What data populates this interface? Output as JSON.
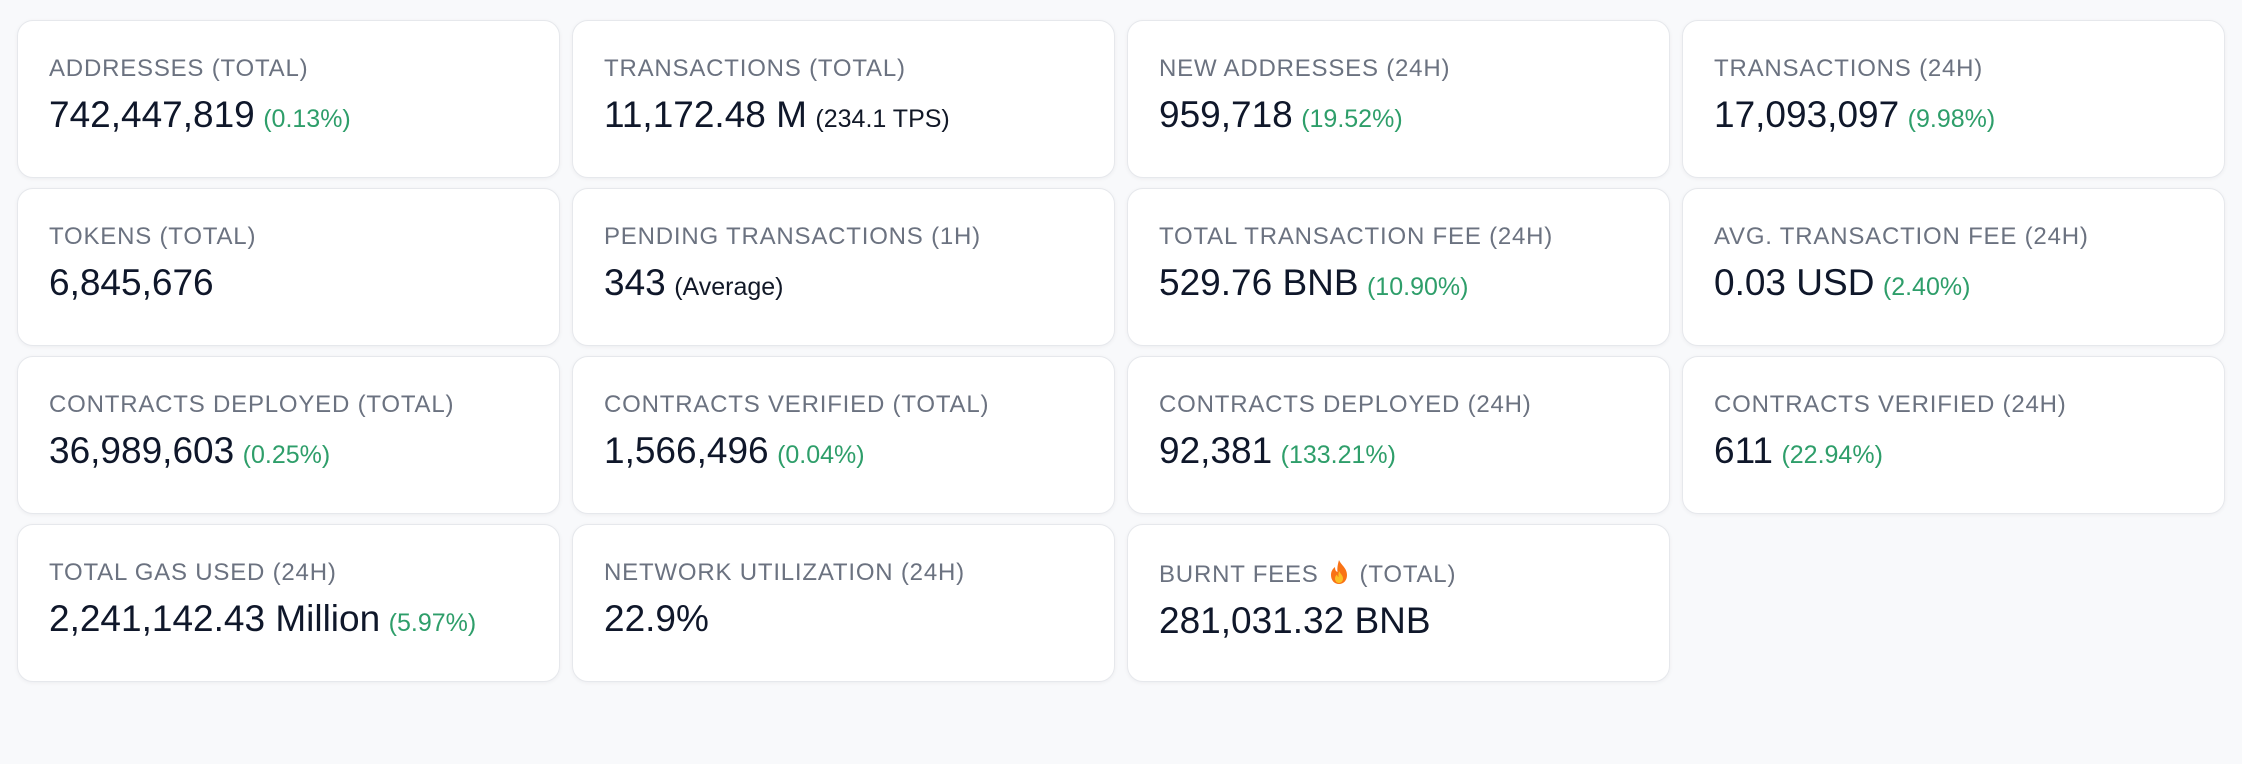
{
  "colors": {
    "positive": "#2e9e6a",
    "value_text": "#0f172a",
    "label_text": "#6b7280",
    "card_bg": "#ffffff",
    "page_bg": "#f8f9fb"
  },
  "stats": {
    "addresses_total": {
      "label": "ADDRESSES (TOTAL)",
      "value": "742,447,819",
      "change": "(0.13%)"
    },
    "transactions_total": {
      "label": "TRANSACTIONS (TOTAL)",
      "value": "11,172.48 M",
      "extra": " (234.1 TPS)"
    },
    "new_addresses_24h": {
      "label": "NEW ADDRESSES (24H)",
      "value": "959,718",
      "change": "(19.52%)"
    },
    "transactions_24h": {
      "label": "TRANSACTIONS (24H)",
      "value": "17,093,097",
      "change": "(9.98%)"
    },
    "tokens_total": {
      "label": "TOKENS (TOTAL)",
      "value": "6,845,676"
    },
    "pending_transactions_1h": {
      "label": "PENDING TRANSACTIONS (1H)",
      "value": "343",
      "extra": "(Average)"
    },
    "total_transaction_fee_24h": {
      "label": "TOTAL TRANSACTION FEE (24H)",
      "value": "529.76 BNB",
      "change": "(10.90%)"
    },
    "avg_transaction_fee_24h": {
      "label": "AVG. TRANSACTION FEE (24H)",
      "value": "0.03 USD",
      "change": "(2.40%)"
    },
    "contracts_deployed_total": {
      "label": "CONTRACTS DEPLOYED (TOTAL)",
      "value": "36,989,603",
      "change": "(0.25%)"
    },
    "contracts_verified_total": {
      "label": "CONTRACTS VERIFIED (TOTAL)",
      "value": "1,566,496",
      "change": "(0.04%)"
    },
    "contracts_deployed_24h": {
      "label": "CONTRACTS DEPLOYED (24H)",
      "value": "92,381",
      "change": "(133.21%)"
    },
    "contracts_verified_24h": {
      "label": "CONTRACTS VERIFIED (24H)",
      "value": "611",
      "change": "(22.94%)"
    },
    "total_gas_used_24h": {
      "label": "TOTAL GAS USED (24H)",
      "value": "2,241,142.43 Million",
      "change": "(5.97%)"
    },
    "network_utilization_24h": {
      "label": "NETWORK UTILIZATION (24H)",
      "value": "22.9%"
    },
    "burnt_fees_total": {
      "label_before": "BURNT FEES",
      "label_after": "(TOTAL)",
      "icon": "fire-icon",
      "value": "281,031.32 BNB"
    }
  }
}
